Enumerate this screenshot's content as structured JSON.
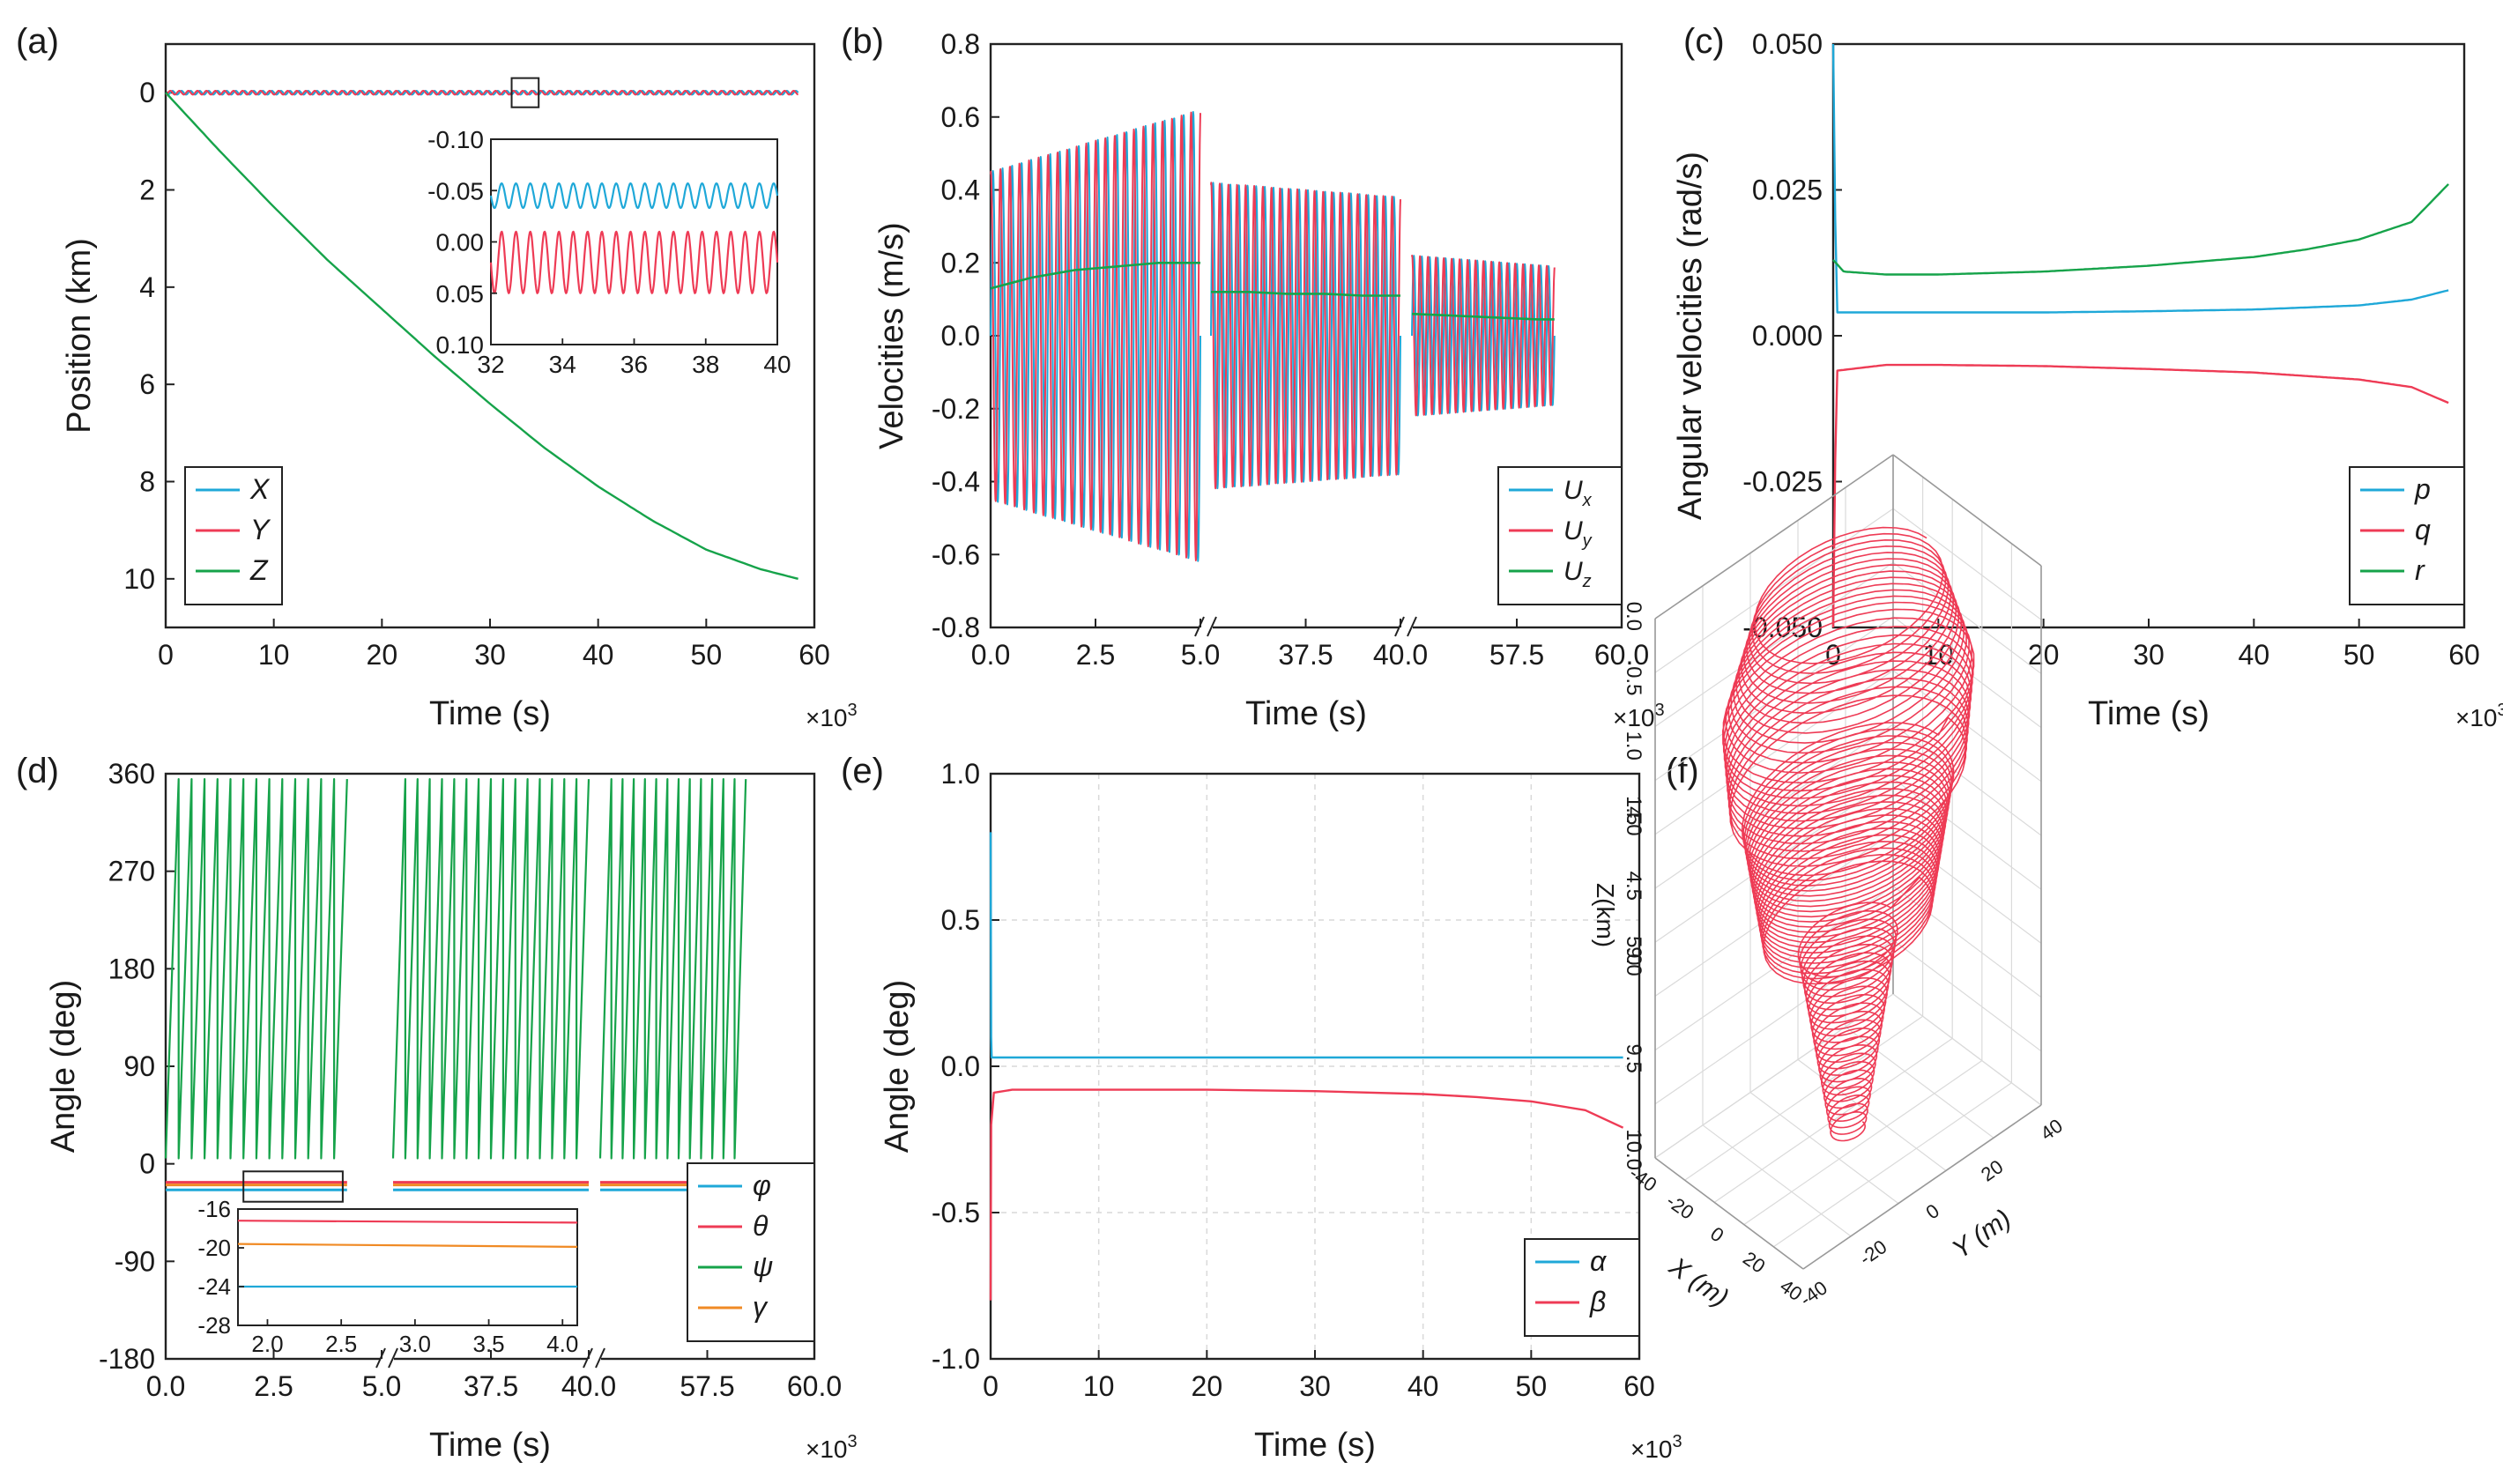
{
  "colors": {
    "blue": "#1fa8d8",
    "red": "#ee3b55",
    "green": "#16a34a",
    "orange": "#f08a24",
    "frame": "#222222",
    "grid": "#d9d9d9"
  },
  "chart_data": [
    {
      "id": "a",
      "panel_label": "(a)",
      "type": "line",
      "xlabel": "Time (s)",
      "ylabel": "Position (km)",
      "x_multiplier": "×10",
      "x_multiplier_exp": "3",
      "xlim": [
        0,
        60
      ],
      "ylim": [
        11,
        -1
      ],
      "y_inverted": true,
      "xticks": [
        0,
        10,
        20,
        30,
        40,
        50,
        60
      ],
      "yticks": [
        0,
        2,
        4,
        6,
        8,
        10
      ],
      "series": [
        {
          "name": "X",
          "style": "oscillate",
          "center": 0,
          "amplitude": 0.04,
          "cycles": 70
        },
        {
          "name": "Y",
          "style": "oscillate",
          "center": 0,
          "amplitude": 0.04,
          "cycles": 70,
          "phase": 1.5
        },
        {
          "name": "Z",
          "x": [
            0,
            5,
            10,
            15,
            20,
            25,
            30,
            35,
            40,
            45,
            50,
            55,
            58.5
          ],
          "y": [
            0,
            1.2,
            2.35,
            3.45,
            4.45,
            5.45,
            6.4,
            7.3,
            8.1,
            8.8,
            9.4,
            9.8,
            10.0
          ]
        }
      ],
      "legend": {
        "position": "bottom-left",
        "entries": [
          "X",
          "Y",
          "Z"
        ]
      },
      "inset": {
        "xlim": [
          32,
          40
        ],
        "ylim": [
          0.1,
          -0.1
        ],
        "y_inverted": true,
        "xticks": [
          32,
          34,
          36,
          38,
          40
        ],
        "yticks": [
          -0.1,
          -0.05,
          0.0,
          0.05,
          0.1
        ],
        "ytick_labels": [
          "-0.10",
          "-0.05",
          "0.00",
          "0.05",
          "0.10"
        ],
        "series": [
          {
            "name": "X",
            "center": -0.045,
            "amplitude": 0.012,
            "cycles": 20
          },
          {
            "name": "Y",
            "center": 0.02,
            "amplitude": 0.03,
            "cycles": 20
          }
        ],
        "zoom_box": {
          "xlim": [
            32,
            34.5
          ],
          "ylim": [
            -0.3,
            0.3
          ]
        }
      }
    },
    {
      "id": "b",
      "panel_label": "(b)",
      "type": "line",
      "xlabel": "Time (s)",
      "ylabel": "Velocities (m/s)",
      "x_multiplier": "×10",
      "x_multiplier_exp": "3",
      "ylim": [
        -0.8,
        0.8
      ],
      "yticks": [
        -0.8,
        -0.6,
        -0.4,
        -0.2,
        0.0,
        0.2,
        0.4,
        0.6,
        0.8
      ],
      "ytick_labels": [
        "-0.8",
        "-0.6",
        "-0.4",
        "-0.2",
        "0.0",
        "0.2",
        "0.4",
        "0.6",
        "0.8"
      ],
      "x_segments": [
        {
          "xlim": [
            0,
            5
          ],
          "tick_labels": [
            "0.0",
            "2.5",
            "5.0"
          ]
        },
        {
          "xlim": [
            35,
            40
          ],
          "tick_labels": [
            "37.5",
            "40.0"
          ]
        },
        {
          "xlim": [
            55,
            60
          ],
          "tick_labels": [
            "57.5",
            "60.0"
          ]
        }
      ],
      "series": [
        {
          "name": "Ux",
          "style": "oscillate",
          "segments": [
            {
              "x": [
                0,
                5
              ],
              "amp": [
                0.45,
                0.62
              ],
              "center": 0,
              "cycles": 22
            },
            {
              "x": [
                35,
                40
              ],
              "amp": [
                0.42,
                0.38
              ],
              "center": 0,
              "cycles": 22
            },
            {
              "x": [
                55,
                58.4
              ],
              "amp": [
                0.22,
                0.19
              ],
              "center": 0,
              "cycles": 18
            }
          ]
        },
        {
          "name": "Uy",
          "style": "oscillate",
          "phase": 1.4,
          "segments": [
            {
              "x": [
                0,
                5
              ],
              "amp": [
                0.45,
                0.62
              ],
              "center": 0,
              "cycles": 22
            },
            {
              "x": [
                35,
                40
              ],
              "amp": [
                0.42,
                0.38
              ],
              "center": 0,
              "cycles": 22
            },
            {
              "x": [
                55,
                58.4
              ],
              "amp": [
                0.22,
                0.19
              ],
              "center": 0,
              "cycles": 18
            }
          ]
        },
        {
          "name": "Uz",
          "segments": [
            {
              "x": [
                0,
                1,
                2,
                3,
                4,
                5
              ],
              "y": [
                0.13,
                0.16,
                0.18,
                0.19,
                0.2,
                0.2
              ]
            },
            {
              "x": [
                35,
                36,
                37,
                38,
                39,
                40
              ],
              "y": [
                0.12,
                0.12,
                0.115,
                0.115,
                0.11,
                0.11
              ]
            },
            {
              "x": [
                55,
                56,
                57,
                58,
                58.4
              ],
              "y": [
                0.06,
                0.055,
                0.05,
                0.045,
                0.045
              ]
            }
          ]
        }
      ],
      "legend": {
        "position": "bottom-right",
        "entries": [
          "Ux",
          "Uy",
          "Uz"
        ],
        "letter": "U",
        "subscripts": [
          "x",
          "y",
          "z"
        ]
      }
    },
    {
      "id": "c",
      "panel_label": "(c)",
      "type": "line",
      "xlabel": "Time (s)",
      "ylabel": "Angular velocities (rad/s)",
      "x_multiplier": "×10",
      "x_multiplier_exp": "3",
      "xlim": [
        0,
        60
      ],
      "ylim": [
        -0.05,
        0.05
      ],
      "xticks": [
        0,
        10,
        20,
        30,
        40,
        50,
        60
      ],
      "yticks": [
        -0.05,
        -0.025,
        0.0,
        0.025,
        0.05
      ],
      "ytick_labels": [
        "-0.050",
        "-0.025",
        "0.000",
        "0.025",
        "0.050"
      ],
      "series": [
        {
          "name": "p",
          "x": [
            0,
            0.3,
            5,
            10,
            20,
            30,
            40,
            50,
            55,
            58.5
          ],
          "y": [
            0.05,
            0.004,
            0.004,
            0.004,
            0.004,
            0.0042,
            0.0045,
            0.0052,
            0.0062,
            0.0078
          ]
        },
        {
          "name": "q",
          "x": [
            0,
            0.3,
            5,
            10,
            20,
            30,
            40,
            50,
            55,
            58.5
          ],
          "y": [
            -0.05,
            -0.006,
            -0.005,
            -0.005,
            -0.0052,
            -0.0057,
            -0.0063,
            -0.0075,
            -0.0088,
            -0.0115
          ]
        },
        {
          "name": "r",
          "x": [
            0,
            1,
            5,
            10,
            20,
            30,
            40,
            45,
            50,
            55,
            58.5
          ],
          "y": [
            0.013,
            0.011,
            0.0105,
            0.0105,
            0.011,
            0.012,
            0.0135,
            0.0148,
            0.0165,
            0.0195,
            0.026
          ]
        }
      ],
      "legend": {
        "position": "bottom-right",
        "entries": [
          "p",
          "q",
          "r"
        ]
      }
    },
    {
      "id": "d",
      "panel_label": "(d)",
      "type": "line",
      "xlabel": "Time (s)",
      "ylabel": "Angle (deg)",
      "x_multiplier": "×10",
      "x_multiplier_exp": "3",
      "ylim": [
        -180,
        360
      ],
      "yticks": [
        -180,
        -90,
        0,
        90,
        180,
        270,
        360
      ],
      "x_segments": [
        {
          "xlim": [
            0,
            5
          ],
          "tick_labels": [
            "0.0",
            "2.5",
            "5.0"
          ]
        },
        {
          "xlim": [
            35,
            40
          ],
          "tick_labels": [
            "37.5",
            "40.0"
          ]
        },
        {
          "xlim": [
            55,
            60
          ],
          "tick_labels": [
            "57.5",
            "60.0"
          ]
        }
      ],
      "series": [
        {
          "name": "φ",
          "y_const": -24
        },
        {
          "name": "θ",
          "y_const": -17
        },
        {
          "name": "ψ",
          "style": "sawtooth",
          "range": [
            0,
            360
          ],
          "segments": [
            {
              "x": [
                0,
                4.2
              ],
              "cycles": 14
            },
            {
              "x": [
                35,
                40
              ],
              "cycles": 16
            },
            {
              "x": [
                55,
                58.4
              ],
              "cycles": 13
            }
          ]
        },
        {
          "name": "γ",
          "y_const": -19.5
        }
      ],
      "legend": {
        "position": "bottom-right",
        "entries": [
          "φ",
          "θ",
          "ψ",
          "γ"
        ]
      },
      "inset": {
        "xlim": [
          1.8,
          4.1
        ],
        "ylim": [
          -28,
          -16
        ],
        "xticks": [
          2.0,
          2.5,
          3.0,
          3.5,
          4.0
        ],
        "xtick_labels": [
          "2.0",
          "2.5",
          "3.0",
          "3.5",
          "4.0"
        ],
        "yticks": [
          -28,
          -24,
          -20,
          -16
        ],
        "series": [
          {
            "name": "θ",
            "y": [
              -17.2,
              -17.4
            ]
          },
          {
            "name": "γ",
            "y": [
              -19.6,
              -19.9
            ]
          },
          {
            "name": "φ",
            "y": [
              -24,
              -24
            ]
          }
        ]
      }
    },
    {
      "id": "e",
      "panel_label": "(e)",
      "type": "line",
      "xlabel": "Time (s)",
      "ylabel": "Angle (deg)",
      "x_multiplier": "×10",
      "x_multiplier_exp": "3",
      "xlim": [
        0,
        60
      ],
      "ylim": [
        -1.0,
        1.0
      ],
      "xticks": [
        0,
        10,
        20,
        30,
        40,
        50,
        60
      ],
      "yticks": [
        -1.0,
        -0.5,
        0.0,
        0.5,
        1.0
      ],
      "ytick_labels": [
        "-1.0",
        "-0.5",
        "0.0",
        "0.5",
        "1.0"
      ],
      "series": [
        {
          "name": "α",
          "x": [
            0,
            0.05,
            0.1,
            10,
            20,
            30,
            40,
            50,
            58.5
          ],
          "y": [
            0.8,
            0.1,
            0.03,
            0.03,
            0.03,
            0.03,
            0.03,
            0.03,
            0.03
          ]
        },
        {
          "name": "β",
          "x": [
            0,
            0.05,
            0.3,
            2,
            10,
            20,
            30,
            40,
            45,
            50,
            55,
            58.5
          ],
          "y": [
            -0.8,
            -0.2,
            -0.09,
            -0.08,
            -0.08,
            -0.08,
            -0.085,
            -0.095,
            -0.105,
            -0.12,
            -0.15,
            -0.21
          ]
        }
      ],
      "legend": {
        "position": "bottom-right",
        "entries": [
          "α",
          "β"
        ]
      }
    },
    {
      "id": "f",
      "panel_label": "(f)",
      "type": "3d-line",
      "xlabel": "X (m)",
      "ylabel": "Y (m)",
      "zlabel": "Z(km)",
      "zticks": [
        "0.0",
        "0.5",
        "1.0",
        "1.5",
        "4.0",
        "4.5",
        "5.0",
        "9.0",
        "9.5",
        "10.0"
      ],
      "xticks": [
        "-40",
        "-20",
        "0",
        "20",
        "40"
      ],
      "yticks": [
        "-40",
        "-20",
        "0",
        "20",
        "40"
      ],
      "series": [
        {
          "name": "trajectory",
          "shape": "helix",
          "loops": {
            "top": 24,
            "mid": 22,
            "bottom": 26
          },
          "radius_profile": [
            {
              "z": 0.0,
              "r": 33
            },
            {
              "z": 0.8,
              "r": 45
            },
            {
              "z": 1.5,
              "r": 42
            },
            {
              "z": 4.0,
              "r": 38
            },
            {
              "z": 5.0,
              "r": 30
            },
            {
              "z": 9.0,
              "r": 18
            },
            {
              "z": 10.0,
              "r": 6
            }
          ]
        }
      ]
    }
  ]
}
